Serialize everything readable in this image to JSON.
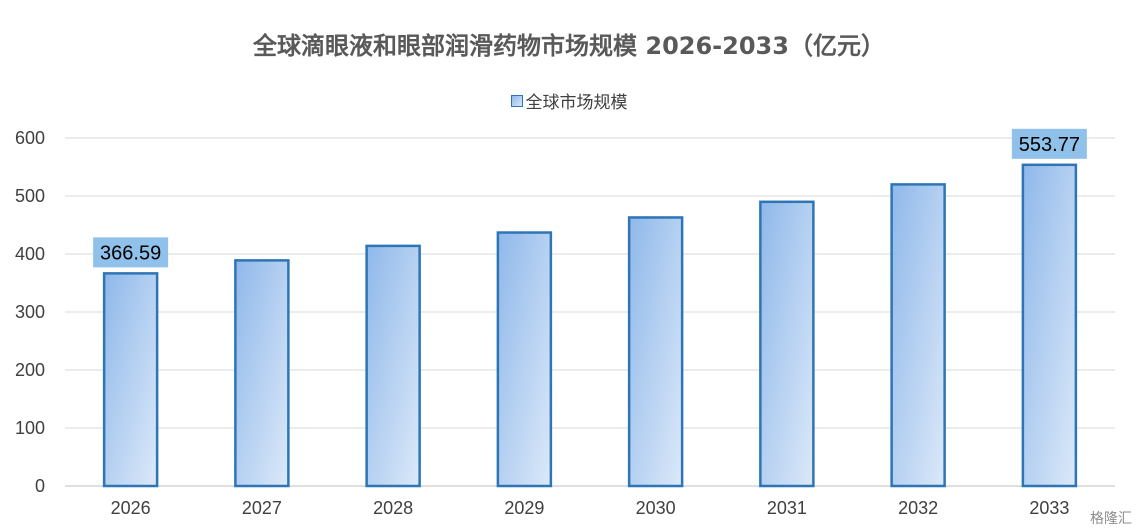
{
  "chart_data": {
    "type": "bar",
    "title": "全球滴眼液和眼部润滑药物市场规模 2026-2033（亿元）",
    "categories": [
      "2026",
      "2027",
      "2028",
      "2029",
      "2030",
      "2031",
      "2032",
      "2033"
    ],
    "series": [
      {
        "name": "全球市场规模",
        "values": [
          366.59,
          389,
          414,
          437,
          463,
          490,
          520,
          553.77
        ]
      }
    ],
    "data_labels": [
      "366.59",
      "",
      "",
      "",
      "",
      "",
      "",
      "553.77"
    ],
    "ylim": [
      0,
      600
    ],
    "yticks": [
      0,
      100,
      200,
      300,
      400,
      500,
      600
    ],
    "grid": true,
    "legend_position": "top",
    "colors": {
      "bar_fill_start": "#8fb8ea",
      "bar_fill_end": "#dce9f9",
      "bar_stroke": "#2e75b6",
      "label_bg": "#8fc1ea",
      "grid": "#d9d9d9"
    }
  },
  "watermark": "格隆汇"
}
